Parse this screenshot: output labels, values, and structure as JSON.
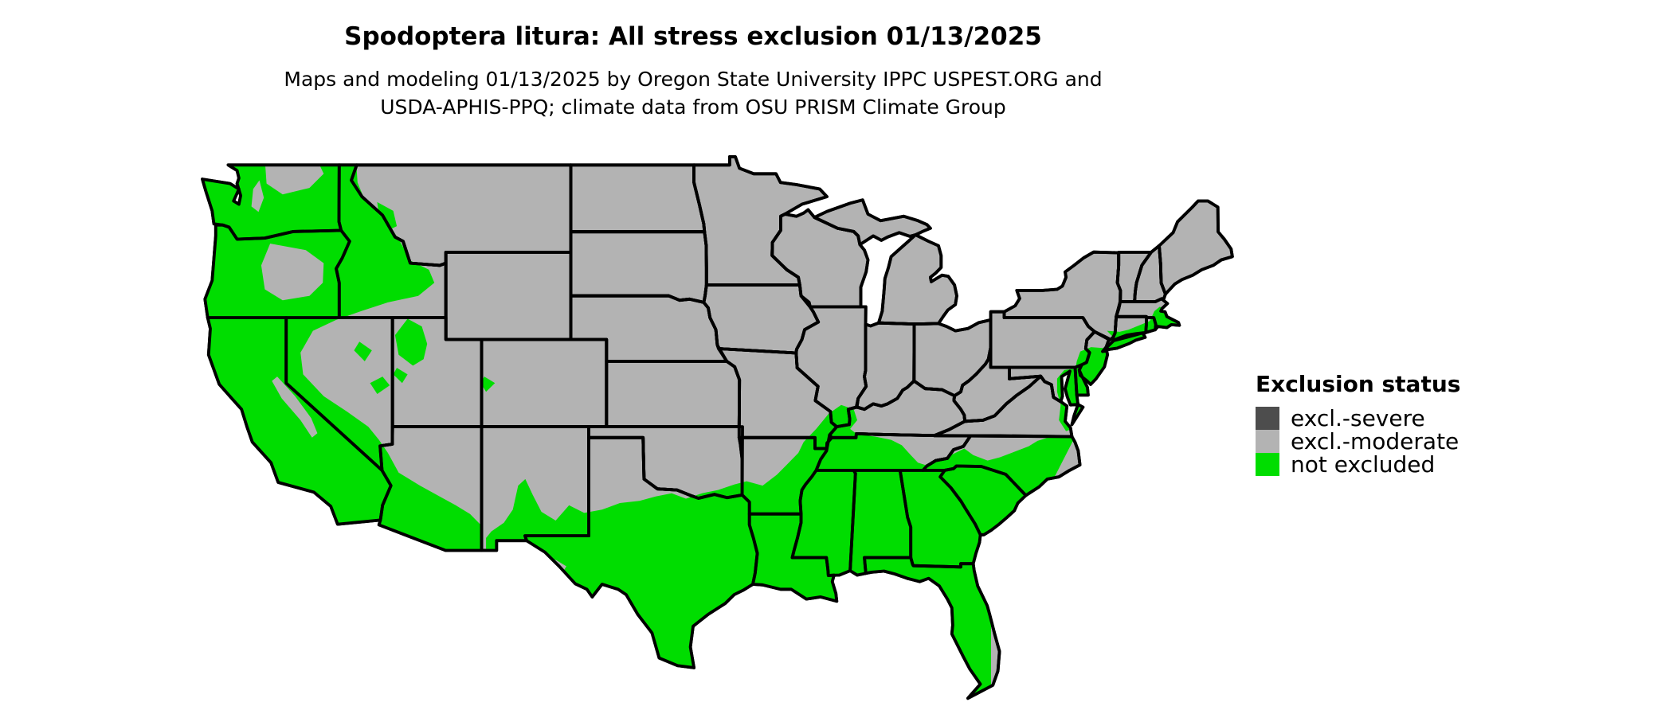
{
  "header": {
    "title": "Spodoptera litura: All stress exclusion 01/13/2025",
    "subtitle_line1": "Maps and modeling 01/13/2025 by Oregon State University IPPC USPEST.ORG and",
    "subtitle_line2": "USDA-APHIS-PPQ; climate data from OSU PRISM Climate Group"
  },
  "legend": {
    "title": "Exclusion status",
    "items": [
      {
        "label": "excl.-severe",
        "color": "#4d4d4d"
      },
      {
        "label": "excl.-moderate",
        "color": "#b3b3b3"
      },
      {
        "label": "not excluded",
        "color": "#00dd00"
      }
    ]
  },
  "map": {
    "region_name": "contiguous-united-states",
    "fill_moderate": "#b3b3b3",
    "fill_not_excluded": "#00dd00",
    "border_color": "#000000",
    "water_color": "#ffffff"
  }
}
